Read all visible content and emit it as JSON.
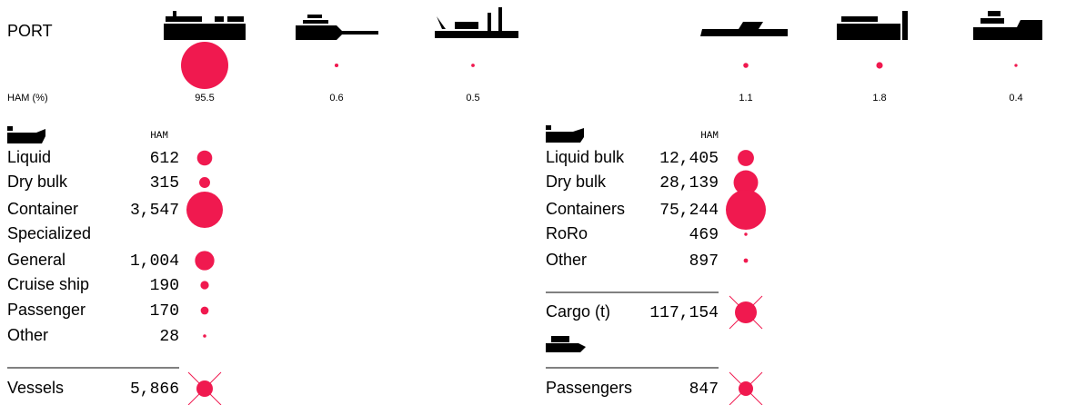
{
  "header": {
    "label": "PORT",
    "metric_label": "HAM (%)",
    "shares": [
      95.5,
      0.6,
      0.5,
      1.1,
      1.8,
      0.4
    ]
  },
  "vessels": {
    "column": "HAM",
    "rows": [
      {
        "label": "Liquid",
        "value": 612
      },
      {
        "label": "Dry bulk",
        "value": 315
      },
      {
        "label": "Container",
        "value": {
          "value": 3547,
          "label": "3,547"
        }
      },
      {
        "label": "Specialized"
      },
      {
        "label": "General",
        "value": {
          "value": 1004,
          "label": "1,004"
        }
      },
      {
        "label": "Cruise ship",
        "value": 190
      },
      {
        "label": "Passenger",
        "value": 170
      },
      {
        "label": "Other",
        "value": 28
      }
    ],
    "total": {
      "label": "Vessels",
      "value": {
        "value": 5866,
        "label": "5,866"
      }
    }
  },
  "cargo": {
    "column": "HAM",
    "rows": [
      {
        "label": "Liquid bulk",
        "value": {
          "value": 12405,
          "label": "12,405"
        }
      },
      {
        "label": "Dry bulk",
        "value": {
          "value": 28139,
          "label": "28,139"
        }
      },
      {
        "label": "Containers",
        "value": {
          "value": 75244,
          "label": "75,244"
        }
      },
      {
        "label": "RoRo",
        "value": 469
      },
      {
        "label": "Other",
        "value": 897
      }
    ],
    "total": {
      "label": "Cargo (t)",
      "value": {
        "value": 117154,
        "label": "117,154"
      }
    }
  },
  "passengers": {
    "total": {
      "label": "Passengers",
      "value": 847
    }
  }
}
